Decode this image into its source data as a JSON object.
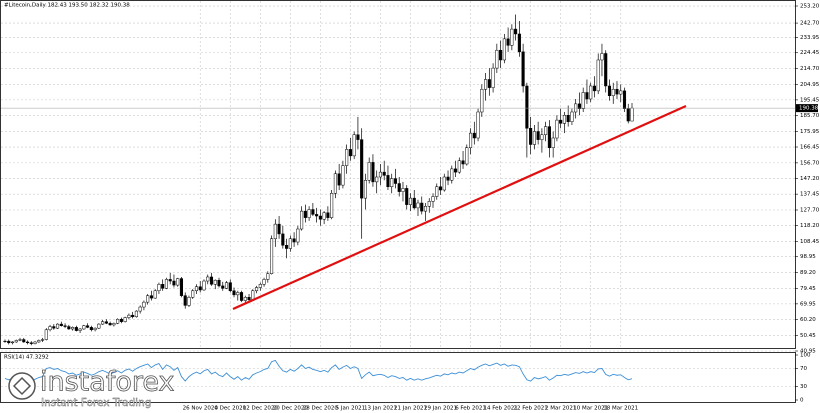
{
  "chart_data": [
    {
      "type": "candlestick",
      "title": "#Litecoin,Daily 182.43 193.50 182.32 190.38",
      "up_color": "#ffffff",
      "down_color": "#000000",
      "outline_color": "#000000",
      "grid": true,
      "ylim": [
        40.95,
        256.9
      ],
      "yticks": [
        {
          "value": 253.2,
          "label": "253.20"
        },
        {
          "value": 242.7,
          "label": "242.70"
        },
        233.95,
        224.45,
        {
          "value": 214.7,
          "label": "214.70"
        },
        204.95,
        195.45,
        {
          "value": 185.7,
          "label": "185.70"
        },
        175.95,
        166.45,
        {
          "value": 156.7,
          "label": "156.70"
        },
        {
          "value": 147.2,
          "label": "147.20"
        },
        137.45,
        {
          "value": 127.7,
          "label": "127.70"
        },
        {
          "value": 118.2,
          "label": "118.20"
        },
        108.45,
        98.95,
        {
          "value": 89.2,
          "label": "89.20"
        },
        79.45,
        69.95,
        {
          "value": 60.2,
          "label": "60.20"
        },
        50.45,
        40.95
      ],
      "categories": [
        null,
        null,
        null,
        null,
        null,
        null,
        null,
        null,
        null,
        null,
        null,
        null,
        null,
        null,
        null,
        null,
        null,
        null,
        null,
        null,
        null,
        null,
        null,
        null,
        null,
        null,
        null,
        null,
        null,
        null,
        null,
        null,
        null,
        null,
        null,
        null,
        null,
        null,
        null,
        null,
        null,
        null,
        null,
        null,
        null,
        null,
        null,
        null,
        null,
        null,
        null,
        null,
        "26 Nov 2020",
        null,
        null,
        null,
        null,
        null,
        null,
        null,
        "4 Dec 2020",
        null,
        null,
        null,
        null,
        null,
        null,
        null,
        "12 Dec 2020",
        null,
        null,
        null,
        null,
        null,
        null,
        null,
        "20 Dec 2020",
        null,
        null,
        null,
        null,
        null,
        null,
        null,
        "28 Dec 2020",
        null,
        null,
        null,
        null,
        null,
        null,
        null,
        "5 Jan 2021",
        null,
        null,
        null,
        null,
        null,
        null,
        null,
        "13 Jan 2021",
        null,
        null,
        null,
        null,
        null,
        null,
        null,
        "21 Jan 2021",
        null,
        null,
        null,
        null,
        null,
        null,
        null,
        "29 Jan 2021",
        null,
        null,
        null,
        null,
        null,
        null,
        null,
        "6 Feb 2021",
        null,
        null,
        null,
        null,
        null,
        null,
        null,
        "14 Feb 2021",
        null,
        null,
        null,
        null,
        null,
        null,
        null,
        "22 Feb 2021",
        null,
        null,
        null,
        null,
        null,
        null,
        null,
        "2 Mar 2021",
        null,
        null,
        null,
        null,
        null,
        null,
        null,
        "10 Mar 2021",
        null,
        null,
        null,
        null,
        null,
        null,
        null,
        "18 Mar 2021",
        null,
        null,
        null
      ],
      "ohlc": [
        [
          47,
          48,
          46,
          47
        ],
        [
          47,
          48,
          45,
          46
        ],
        [
          46,
          47,
          45,
          46.5
        ],
        [
          46.5,
          48,
          46,
          47.5
        ],
        [
          47.5,
          49,
          47,
          48
        ],
        [
          48,
          49,
          46,
          46.5
        ],
        [
          46.5,
          47.5,
          45,
          46
        ],
        [
          46,
          47,
          44.5,
          45.5
        ],
        [
          45.5,
          47,
          45,
          46.5
        ],
        [
          46.5,
          48,
          46,
          47.5
        ],
        [
          47.5,
          49,
          46.5,
          48
        ],
        [
          48,
          55,
          47.5,
          54
        ],
        [
          54,
          57,
          53,
          56
        ],
        [
          56,
          57.5,
          54,
          55
        ],
        [
          55,
          58,
          54.5,
          57.5
        ],
        [
          57.5,
          59,
          56,
          56.5
        ],
        [
          56.5,
          58,
          55,
          56
        ],
        [
          56,
          57,
          54,
          54.5
        ],
        [
          54.5,
          56,
          53.5,
          55.5
        ],
        [
          55.5,
          56.5,
          53,
          53.5
        ],
        [
          53.5,
          55,
          52,
          54.5
        ],
        [
          54.5,
          57,
          54,
          56.5
        ],
        [
          56.5,
          58,
          55,
          55.5
        ],
        [
          55.5,
          56.5,
          53,
          54
        ],
        [
          54,
          55.5,
          53,
          55
        ],
        [
          55,
          58,
          54.5,
          57.5
        ],
        [
          57.5,
          60,
          57,
          59
        ],
        [
          59,
          60.5,
          57.5,
          58
        ],
        [
          58,
          59,
          56.5,
          57
        ],
        [
          57,
          58.5,
          56,
          58
        ],
        [
          58,
          61,
          57.5,
          60.5
        ],
        [
          60.5,
          61.5,
          58,
          59
        ],
        [
          59,
          62,
          58.5,
          61.5
        ],
        [
          61.5,
          64,
          60.5,
          63
        ],
        [
          63,
          65,
          61,
          62
        ],
        [
          62,
          66,
          61.5,
          65.5
        ],
        [
          65.5,
          69,
          64,
          68
        ],
        [
          68,
          72,
          66,
          71
        ],
        [
          71,
          76,
          69.5,
          75
        ],
        [
          75,
          78,
          72,
          73.5
        ],
        [
          73.5,
          79,
          73,
          78
        ],
        [
          78,
          83,
          76,
          82
        ],
        [
          82,
          85,
          78,
          79.5
        ],
        [
          79.5,
          86,
          79,
          85
        ],
        [
          85,
          89,
          82,
          84
        ],
        [
          84,
          88,
          80,
          81.5
        ],
        [
          81.5,
          86,
          80.5,
          85.5
        ],
        [
          85.5,
          86.5,
          74,
          75
        ],
        [
          75,
          77,
          67,
          69
        ],
        [
          69,
          75,
          68,
          74
        ],
        [
          74,
          79,
          73,
          78
        ],
        [
          78,
          82,
          76,
          80.5
        ],
        [
          80.5,
          84,
          77,
          78.5
        ],
        [
          78.5,
          85,
          78,
          84
        ],
        [
          84,
          88,
          82,
          86.5
        ],
        [
          86.5,
          89,
          81,
          82
        ],
        [
          82,
          85,
          79,
          84.5
        ],
        [
          84.5,
          86,
          80,
          81
        ],
        [
          81,
          83.5,
          78,
          79.5
        ],
        [
          79.5,
          84,
          79,
          83
        ],
        [
          83,
          85,
          77,
          78
        ],
        [
          78,
          80,
          74,
          75.5
        ],
        [
          75.5,
          78,
          72,
          77
        ],
        [
          77,
          78,
          71,
          72
        ],
        [
          72,
          75,
          70,
          74
        ],
        [
          74,
          76,
          71,
          72.5
        ],
        [
          72.5,
          79,
          72,
          78
        ],
        [
          78,
          81,
          76.5,
          80
        ],
        [
          80,
          83,
          78,
          82
        ],
        [
          82,
          86,
          80.5,
          85
        ],
        [
          85,
          90,
          83,
          88.5
        ],
        [
          88.5,
          112,
          88,
          110
        ],
        [
          110,
          122,
          105,
          119
        ],
        [
          119,
          124,
          110,
          113
        ],
        [
          113,
          118,
          104,
          106
        ],
        [
          106,
          110,
          98,
          104
        ],
        [
          104,
          112,
          102,
          110
        ],
        [
          110,
          114,
          105,
          108
        ],
        [
          108,
          118,
          106,
          116
        ],
        [
          116,
          130,
          115,
          127
        ],
        [
          127,
          131,
          120,
          123
        ],
        [
          123,
          130,
          121,
          128
        ],
        [
          128,
          132,
          124,
          125
        ],
        [
          125,
          129,
          120,
          124
        ],
        [
          124,
          128,
          118,
          122
        ],
        [
          122,
          127,
          119,
          126
        ],
        [
          126,
          130,
          121,
          123
        ],
        [
          123,
          140,
          122,
          138
        ],
        [
          138,
          152,
          135,
          150
        ],
        [
          150,
          156,
          140,
          143
        ],
        [
          143,
          158,
          141,
          155
        ],
        [
          155,
          168,
          150,
          165
        ],
        [
          165,
          172,
          158,
          161
        ],
        [
          161,
          176,
          159,
          174
        ],
        [
          174,
          185,
          165,
          171
        ],
        [
          171,
          178,
          110,
          135
        ],
        [
          135,
          150,
          128,
          146
        ],
        [
          146,
          160,
          144,
          157
        ],
        [
          157,
          162,
          142,
          145
        ],
        [
          145,
          152,
          138,
          148
        ],
        [
          148,
          156,
          143,
          151
        ],
        [
          151,
          158,
          146,
          149
        ],
        [
          149,
          155,
          140,
          142
        ],
        [
          142,
          150,
          138,
          147
        ],
        [
          147,
          153,
          141,
          144
        ],
        [
          144,
          148,
          136,
          139
        ],
        [
          139,
          145,
          133,
          141
        ],
        [
          141,
          143,
          128,
          131
        ],
        [
          131,
          138,
          127,
          135
        ],
        [
          135,
          140,
          128,
          129
        ],
        [
          129,
          134,
          124,
          132
        ],
        [
          132,
          136,
          125,
          127
        ],
        [
          127,
          132,
          121,
          130
        ],
        [
          130,
          135,
          126,
          133
        ],
        [
          133,
          138,
          129,
          136
        ],
        [
          136,
          144,
          134,
          142
        ],
        [
          142,
          148,
          137,
          140
        ],
        [
          140,
          150,
          139,
          148
        ],
        [
          148,
          152,
          143,
          146
        ],
        [
          146,
          155,
          144,
          153
        ],
        [
          153,
          158,
          148,
          151
        ],
        [
          151,
          160,
          150,
          158
        ],
        [
          158,
          164,
          153,
          156
        ],
        [
          156,
          168,
          155,
          166
        ],
        [
          166,
          178,
          162,
          175
        ],
        [
          175,
          182,
          168,
          172
        ],
        [
          172,
          190,
          170,
          188
        ],
        [
          188,
          205,
          185,
          202
        ],
        [
          202,
          212,
          195,
          208
        ],
        [
          208,
          215,
          198,
          203
        ],
        [
          203,
          218,
          200,
          215
        ],
        [
          215,
          230,
          212,
          226
        ],
        [
          226,
          232,
          215,
          220
        ],
        [
          220,
          236,
          218,
          233
        ],
        [
          233,
          240,
          225,
          229
        ],
        [
          229,
          242,
          226,
          239
        ],
        [
          239,
          248,
          232,
          236
        ],
        [
          236,
          244,
          222,
          225
        ],
        [
          225,
          230,
          200,
          204
        ],
        [
          204,
          206,
          160,
          178
        ],
        [
          178,
          185,
          162,
          168
        ],
        [
          168,
          180,
          165,
          176
        ],
        [
          176,
          182,
          168,
          171
        ],
        [
          171,
          178,
          163,
          174
        ],
        [
          174,
          182,
          170,
          179
        ],
        [
          179,
          183,
          160,
          166
        ],
        [
          166,
          176,
          160,
          172
        ],
        [
          172,
          186,
          170,
          183
        ],
        [
          183,
          190,
          178,
          181
        ],
        [
          181,
          188,
          175,
          186
        ],
        [
          186,
          192,
          179,
          182
        ],
        [
          182,
          190,
          180,
          188
        ],
        [
          188,
          196,
          184,
          193
        ],
        [
          193,
          200,
          186,
          190
        ],
        [
          190,
          203,
          188,
          200
        ],
        [
          200,
          208,
          193,
          196
        ],
        [
          196,
          206,
          194,
          204
        ],
        [
          204,
          210,
          197,
          201
        ],
        [
          201,
          224,
          199,
          220
        ],
        [
          220,
          230,
          210,
          224
        ],
        [
          224,
          226,
          200,
          204
        ],
        [
          204,
          208,
          195,
          198
        ],
        [
          198,
          206,
          193,
          202
        ],
        [
          202,
          207,
          196,
          199
        ],
        [
          199,
          205,
          194,
          201
        ],
        [
          201,
          203,
          188,
          190
        ],
        [
          190,
          193,
          181,
          182.43
        ],
        [
          182.43,
          193.5,
          182.32,
          190.38
        ]
      ]
    },
    {
      "type": "line",
      "title": "RSI(14) 47.3292",
      "color": "#3d8fd6",
      "ylim": [
        0,
        100
      ],
      "yticks": [
        100,
        70,
        30,
        0
      ],
      "levels": [
        70,
        30
      ],
      "values": [
        48,
        45,
        47,
        50,
        52,
        45,
        43,
        41,
        46,
        50,
        52,
        70,
        72,
        68,
        70,
        65,
        63,
        58,
        60,
        55,
        58,
        62,
        59,
        55,
        58,
        63,
        66,
        62,
        58,
        61,
        65,
        60,
        66,
        69,
        64,
        70,
        74,
        77,
        80,
        72,
        78,
        81,
        68,
        78,
        74,
        66,
        72,
        52,
        42,
        52,
        58,
        62,
        58,
        65,
        68,
        58,
        62,
        55,
        52,
        60,
        52,
        46,
        52,
        44,
        50,
        46,
        56,
        60,
        63,
        68,
        70,
        85,
        88,
        75,
        65,
        62,
        68,
        64,
        70,
        78,
        70,
        73,
        68,
        66,
        63,
        66,
        62,
        72,
        78,
        68,
        73,
        77,
        70,
        74,
        70,
        48,
        56,
        62,
        54,
        56,
        57,
        55,
        50,
        54,
        52,
        48,
        50,
        44,
        48,
        44,
        47,
        44,
        47,
        49,
        52,
        55,
        53,
        58,
        56,
        60,
        58,
        62,
        60,
        65,
        70,
        67,
        73,
        77,
        80,
        76,
        79,
        82,
        77,
        80,
        75,
        78,
        77,
        74,
        58,
        45,
        42,
        50,
        47,
        49,
        52,
        44,
        49,
        55,
        54,
        57,
        55,
        58,
        61,
        59,
        63,
        60,
        63,
        61,
        69,
        70,
        57,
        53,
        57,
        55,
        56,
        50,
        45,
        47.3292
      ]
    }
  ],
  "watermark": {
    "brand": "instaforex",
    "tagline": "Instant Forex Trading"
  }
}
